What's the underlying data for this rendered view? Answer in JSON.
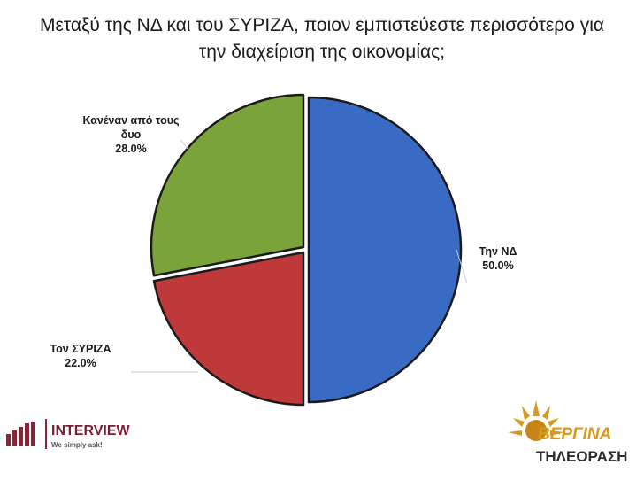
{
  "chart_data": {
    "type": "pie",
    "title": "Μεταξύ της ΝΔ και του ΣΥΡΙΖΑ, ποιον εμπιστεύεστε περισσότερο για την διαχείριση της οικονομίας;",
    "title_lines": [
      "Μεταξύ της ΝΔ και του ΣΥΡΙΖΑ, ποιον εμπιστεύεστε περισσότερο για",
      "την διαχείριση της οικονομίας;"
    ],
    "slices": [
      {
        "label": "Την ΝΔ",
        "value": 50.0,
        "value_label": "50.0%",
        "color": "#3a6bc4"
      },
      {
        "label": "Τον ΣΥΡΙΖΑ",
        "value": 22.0,
        "value_label": "22.0%",
        "color": "#c0393a"
      },
      {
        "label": "Κανέναν από τους δυο",
        "label_lines": [
          "Κανέναν από τους",
          "δυο"
        ],
        "value": 28.0,
        "value_label": "28.0%",
        "color": "#7aa43a"
      }
    ],
    "exploded": true
  },
  "logos": {
    "left": {
      "name": "INTERVIEW",
      "tagline": "We simply ask!"
    },
    "right": {
      "name": "ΒΕΡΓΙΝΑ",
      "subtitle": "ΤΗΛΕΟΡΑΣΗ"
    }
  },
  "colors": {
    "brand_interview": "#8b2439",
    "brand_vergina_gold": "#d79a1c",
    "brand_vergina_dark": "#2b2b2b"
  }
}
